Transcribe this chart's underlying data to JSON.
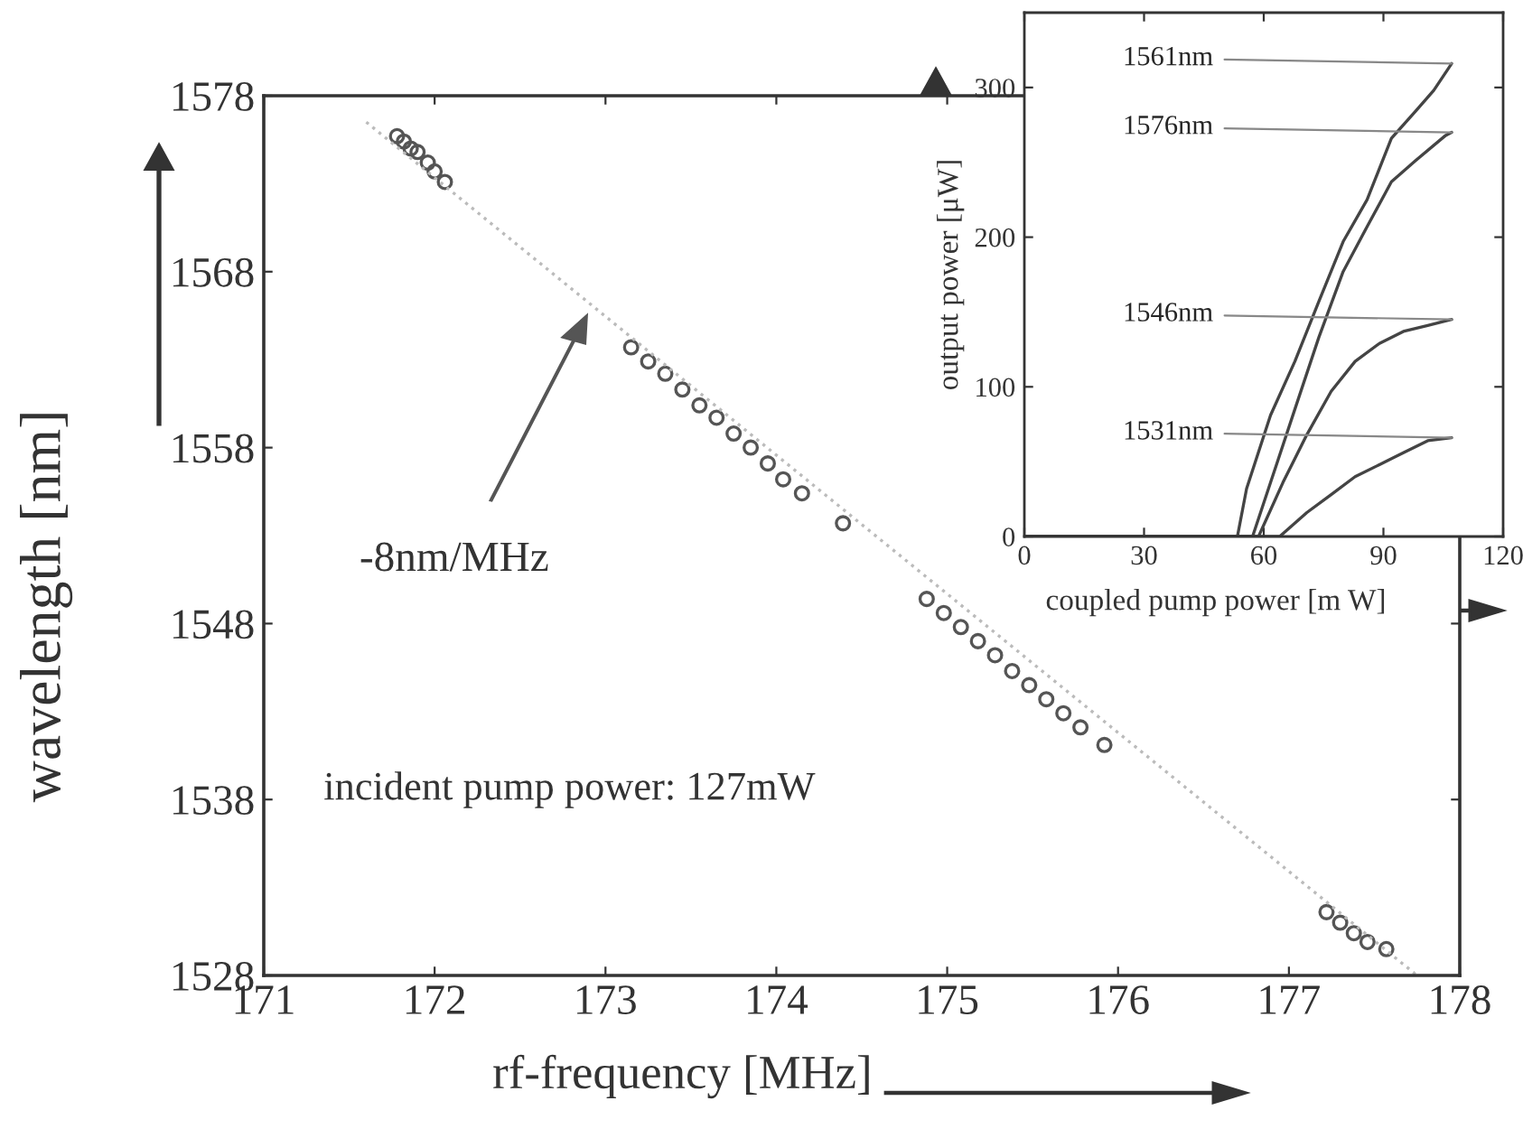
{
  "chart_data": [
    {
      "type": "scatter",
      "xlabel": "rf-frequency [MHz]",
      "ylabel": "wavelength [nm]",
      "xlim": [
        171,
        178
      ],
      "ylim": [
        1528,
        1578
      ],
      "xticks": [
        171,
        172,
        173,
        174,
        175,
        176,
        177,
        178
      ],
      "yticks": [
        1528,
        1538,
        1548,
        1558,
        1568,
        1578
      ],
      "grid": false,
      "series": [
        {
          "type": "scatter",
          "marker": "circle",
          "color": "#555555",
          "x": [
            171.78,
            171.82,
            171.86,
            171.9,
            171.96,
            172.0,
            172.06,
            173.15,
            173.25,
            173.35,
            173.45,
            173.55,
            173.65,
            173.75,
            173.85,
            173.95,
            174.04,
            174.15,
            174.39,
            174.88,
            174.98,
            175.08,
            175.18,
            175.28,
            175.38,
            175.48,
            175.58,
            175.68,
            175.78,
            175.92,
            177.22,
            177.3,
            177.38,
            177.46,
            177.57
          ],
          "values": [
            1575.7,
            1575.4,
            1575.0,
            1574.8,
            1574.2,
            1573.7,
            1573.1,
            1563.7,
            1562.9,
            1562.2,
            1561.3,
            1560.4,
            1559.7,
            1558.8,
            1558.0,
            1557.1,
            1556.2,
            1555.4,
            1553.7,
            1549.4,
            1548.6,
            1547.8,
            1547.0,
            1546.2,
            1545.3,
            1544.5,
            1543.7,
            1542.9,
            1542.1,
            1541.1,
            1531.6,
            1531.0,
            1530.4,
            1529.9,
            1529.5
          ]
        },
        {
          "type": "line",
          "color": "#bbbbbb",
          "line_style": "dotted",
          "x": [
            171.6,
            177.75
          ],
          "values": [
            1576.5,
            1528.0
          ]
        }
      ],
      "annotations": [
        "-8nm/MHz",
        "incident pump power: 127mW"
      ]
    },
    {
      "type": "line",
      "xlabel": "coupled pump power [m W]",
      "ylabel": "output power [μW]",
      "xlim": [
        0,
        120
      ],
      "ylim": [
        0,
        350
      ],
      "xticks": [
        0,
        30,
        60,
        90,
        120
      ],
      "yticks": [
        0,
        100,
        200,
        300
      ],
      "grid": false,
      "series": [
        {
          "name": "1561nm",
          "color": "#444444",
          "x": [
            0,
            53.4,
            55.7,
            61.7,
            67.8,
            73.8,
            79.9,
            85.9,
            92,
            98,
            102.6,
            107.1
          ],
          "values": [
            0,
            0,
            32,
            81,
            117,
            157,
            197,
            225,
            266,
            284,
            298,
            316
          ]
        },
        {
          "name": "1576nm",
          "color": "#444444",
          "x": [
            0,
            57.2,
            61.7,
            67.8,
            73.8,
            79.9,
            85.9,
            92,
            98,
            105.6,
            107.1
          ],
          "values": [
            0,
            0,
            36,
            85,
            133,
            177,
            207,
            237,
            251,
            268,
            270
          ]
        },
        {
          "name": "1546nm",
          "color": "#444444",
          "x": [
            0,
            58.7,
            64.8,
            70.8,
            76.9,
            82.9,
            89,
            95,
            101.1,
            107.1
          ],
          "values": [
            0,
            0,
            36,
            68,
            97,
            117,
            129,
            137,
            141,
            145
          ]
        },
        {
          "name": "1531nm",
          "color": "#444444",
          "x": [
            0,
            64,
            70.8,
            76.9,
            82.9,
            89,
            95,
            101.1,
            107.1
          ],
          "values": [
            0,
            0,
            16,
            28,
            40,
            48,
            56,
            64,
            66
          ]
        }
      ]
    }
  ]
}
